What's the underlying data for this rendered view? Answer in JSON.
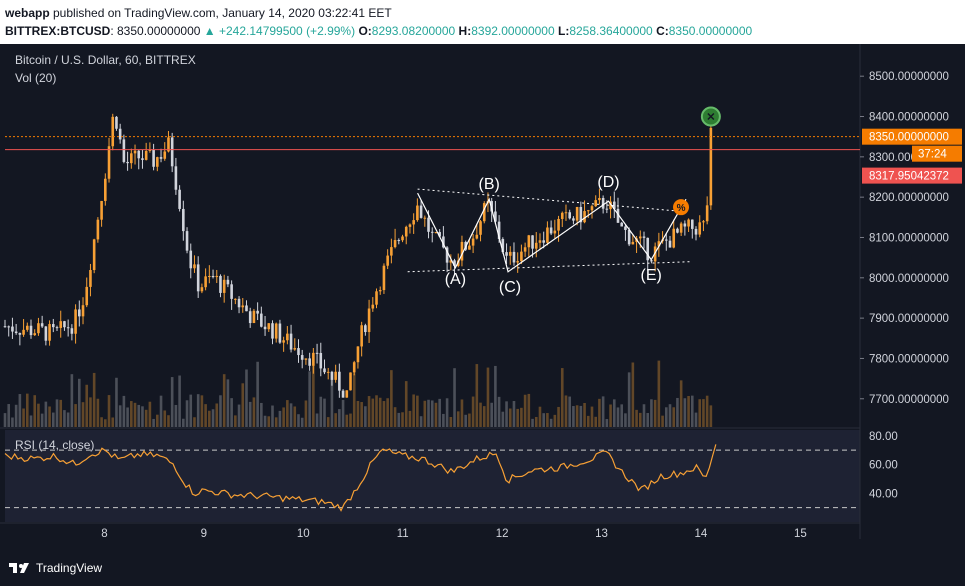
{
  "header": {
    "line1_user": "webapp",
    "line1_text": " published on TradingView.com, January 14, 2020 03:22:41 EET",
    "symbol": "BITTREX:BTCUSD",
    "price": "8350.00000000",
    "change": "▲ +242.14799500 (+2.99%)",
    "o_label": "O:",
    "o_val": "8293.08200000",
    "h_label": "H:",
    "h_val": "8392.00000000",
    "l_label": "L:",
    "l_val": "8258.36400000",
    "c_label": "C:",
    "c_val": "8350.00000000"
  },
  "legend": {
    "title": "Bitcoin / U.S. Dollar, 60, BITTREX",
    "vol": "Vol (20)",
    "rsi": "RSI (14, close)"
  },
  "badges": {
    "last_price": "8350.00000000",
    "countdown": "37:24",
    "line_price": "8317.95042372"
  },
  "footer": {
    "brand": "TradingView"
  },
  "colors": {
    "background": "#131722",
    "up": "#f7a035",
    "down": "#d1d4dc",
    "rsi": "#f7a035",
    "last_price_badge": "#f57c00",
    "line_price_badge": "#ef5350",
    "annotation": "#ffffff"
  },
  "chart_data": {
    "type": "candlestick",
    "symbol": "BTCUSD",
    "interval": "60",
    "y_ticks": [
      7700,
      7800,
      7900,
      8000,
      8100,
      8200,
      8300,
      8400,
      8500
    ],
    "y_tick_labels": [
      "7700.00000000",
      "7800.00000000",
      "7900.00000000",
      "8000.00000000",
      "8100.00000000",
      "8200.00000000",
      "8300.00000000",
      "8400.00000000",
      "8500.00000000"
    ],
    "ylim": [
      7630,
      8560
    ],
    "x_ticks": [
      8,
      9,
      10,
      11,
      12,
      13,
      14,
      15
    ],
    "x_tick_labels": [
      "8",
      "9",
      "10",
      "11",
      "12",
      "13",
      "14",
      "15"
    ],
    "xlim": [
      7.0,
      15.6
    ],
    "price_path": [
      [
        7.0,
        7880
      ],
      [
        7.3,
        7870
      ],
      [
        7.5,
        7860
      ],
      [
        7.7,
        7890
      ],
      [
        7.8,
        7960
      ],
      [
        7.9,
        8100
      ],
      [
        8.0,
        8250
      ],
      [
        8.1,
        8420
      ],
      [
        8.2,
        8280
      ],
      [
        8.35,
        8300
      ],
      [
        8.5,
        8290
      ],
      [
        8.65,
        8330
      ],
      [
        8.75,
        8200
      ],
      [
        8.85,
        8050
      ],
      [
        8.95,
        7980
      ],
      [
        9.1,
        8000
      ],
      [
        9.3,
        7950
      ],
      [
        9.5,
        7900
      ],
      [
        9.7,
        7870
      ],
      [
        9.9,
        7830
      ],
      [
        10.1,
        7800
      ],
      [
        10.3,
        7750
      ],
      [
        10.45,
        7710
      ],
      [
        10.55,
        7830
      ],
      [
        10.7,
        7950
      ],
      [
        10.85,
        8040
      ],
      [
        11.0,
        8120
      ],
      [
        11.15,
        8180
      ],
      [
        11.3,
        8100
      ],
      [
        11.5,
        8040
      ],
      [
        11.7,
        8100
      ],
      [
        11.85,
        8180
      ],
      [
        11.95,
        8120
      ],
      [
        12.05,
        8040
      ],
      [
        12.3,
        8090
      ],
      [
        12.6,
        8140
      ],
      [
        12.85,
        8160
      ],
      [
        13.05,
        8190
      ],
      [
        13.2,
        8120
      ],
      [
        13.35,
        8090
      ],
      [
        13.5,
        8060
      ],
      [
        13.65,
        8090
      ],
      [
        13.85,
        8120
      ],
      [
        14.05,
        8130
      ],
      [
        14.1,
        8350
      ]
    ],
    "resistance_level": 8350,
    "line_level": 8317.95,
    "volume_ylim": [
      0,
      100
    ],
    "rsi": {
      "ylim": [
        20,
        84
      ],
      "ticks": [
        40,
        60,
        80
      ],
      "tick_labels": [
        "40.00",
        "60.00",
        "80.00"
      ],
      "bands": [
        30,
        70
      ],
      "path": [
        [
          7.0,
          66
        ],
        [
          7.3,
          64
        ],
        [
          7.5,
          66
        ],
        [
          7.7,
          60
        ],
        [
          7.85,
          67
        ],
        [
          8.0,
          70
        ],
        [
          8.15,
          63
        ],
        [
          8.35,
          67
        ],
        [
          8.55,
          66
        ],
        [
          8.7,
          60
        ],
        [
          8.8,
          48
        ],
        [
          8.9,
          40
        ],
        [
          9.0,
          42
        ],
        [
          9.3,
          39
        ],
        [
          9.6,
          38
        ],
        [
          9.9,
          36
        ],
        [
          10.2,
          34
        ],
        [
          10.4,
          30
        ],
        [
          10.55,
          45
        ],
        [
          10.7,
          62
        ],
        [
          10.8,
          70
        ],
        [
          11.0,
          66
        ],
        [
          11.2,
          64
        ],
        [
          11.5,
          55
        ],
        [
          11.75,
          64
        ],
        [
          11.95,
          68
        ],
        [
          12.05,
          49
        ],
        [
          12.3,
          56
        ],
        [
          12.6,
          58
        ],
        [
          12.9,
          64
        ],
        [
          13.05,
          68
        ],
        [
          13.2,
          55
        ],
        [
          13.4,
          42
        ],
        [
          13.6,
          52
        ],
        [
          13.8,
          54
        ],
        [
          13.95,
          58
        ],
        [
          14.05,
          50
        ],
        [
          14.15,
          75
        ]
      ]
    },
    "annotations": {
      "labels": [
        {
          "text": "(A)",
          "x": 11.53,
          "y": 7985
        },
        {
          "text": "(B)",
          "x": 11.87,
          "y": 8220
        },
        {
          "text": "(C)",
          "x": 12.08,
          "y": 7965
        },
        {
          "text": "(D)",
          "x": 13.07,
          "y": 8225
        },
        {
          "text": "(E)",
          "x": 13.5,
          "y": 7995
        }
      ],
      "wave": [
        [
          11.15,
          8210
        ],
        [
          11.53,
          8025
        ],
        [
          11.87,
          8195
        ],
        [
          12.06,
          8015
        ],
        [
          13.07,
          8190
        ],
        [
          13.5,
          8045
        ],
        [
          13.85,
          8195
        ]
      ],
      "upper_line": [
        [
          11.15,
          8220
        ],
        [
          13.8,
          8165
        ]
      ],
      "lower_line": [
        [
          11.05,
          8015
        ],
        [
          13.9,
          8040
        ]
      ]
    }
  }
}
